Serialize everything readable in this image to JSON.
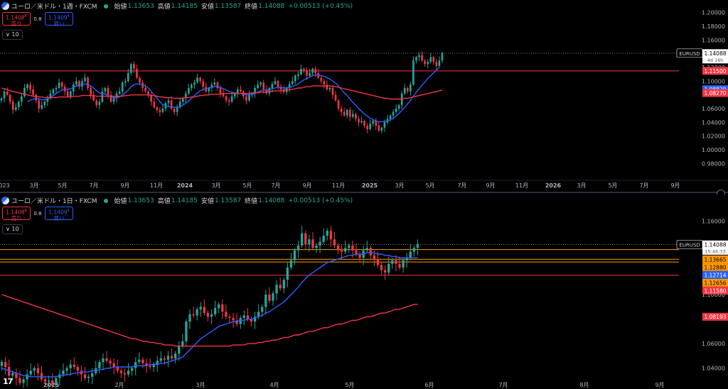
{
  "colors": {
    "up": "#26a69a",
    "down": "#f23645",
    "ma_fast": "#2962ff",
    "ma_slow": "#f23645",
    "orange": "#ff9800"
  },
  "panes": [
    {
      "symbol_title": "ユーロ／米ドル・1週・FXCM",
      "ohlc": [
        {
          "label": "始値",
          "value": "1.13653"
        },
        {
          "label": "高値",
          "value": "1.14185"
        },
        {
          "label": "安値",
          "value": "1.13587"
        },
        {
          "label": "終値",
          "value": "1.14088"
        },
        {
          "label": "",
          "value": "+0.00513 (+0.45%)"
        }
      ],
      "sell": {
        "price": "1.1408",
        "sup": "8",
        "label": "売り"
      },
      "buy": {
        "price": "1.1409",
        "sup": "4",
        "label": "買い"
      },
      "spread": "0.8",
      "collapse": "10",
      "ticker_tag": "EURUSD",
      "countdown": "4d 16h",
      "price_labels": [
        {
          "value": "1.14088",
          "kind": "last"
        },
        {
          "value": "1.11500",
          "kind": "red"
        },
        {
          "value": "1.08820",
          "kind": "blue"
        },
        {
          "value": "1.08270",
          "kind": "red"
        }
      ],
      "y_ticks": [
        "1.20000",
        "1.18000",
        "1.16000",
        "1.14000",
        "1.12000",
        "1.10000",
        "1.08000",
        "1.06000",
        "1.04000",
        "1.02000",
        "1.00000",
        "0.98000"
      ],
      "x_labels": [
        "023",
        "3月",
        "5月",
        "7月",
        "9月",
        "11月",
        "2024",
        "3月",
        "5月",
        "7月",
        "9月",
        "11月",
        "2025",
        "3月",
        "5月",
        "7月",
        "9月",
        "11月",
        "2026",
        "3月",
        "5月",
        "7月",
        "9月"
      ]
    },
    {
      "symbol_title": "ユーロ／米ドル・1日・FXCM",
      "ohlc": [
        {
          "label": "始値",
          "value": "1.13653"
        },
        {
          "label": "高値",
          "value": "1.14185"
        },
        {
          "label": "安値",
          "value": "1.13587"
        },
        {
          "label": "終値",
          "value": "1.14088"
        },
        {
          "label": "",
          "value": "+0.00513 (+0.45%)"
        }
      ],
      "sell": {
        "price": "1.1408",
        "sup": "8",
        "label": "売り"
      },
      "buy": {
        "price": "1.1409",
        "sup": "4",
        "label": "買い"
      },
      "spread": "0.8",
      "collapse": "10",
      "ticker_tag": "EURUSD",
      "countdown": "15:46:33",
      "price_labels": [
        {
          "value": "1.14088",
          "kind": "last"
        },
        {
          "value": "1.13665",
          "kind": "orange"
        },
        {
          "value": "1.12880",
          "kind": "orange"
        },
        {
          "value": "1.12714",
          "kind": "blue"
        },
        {
          "value": "1.12656",
          "kind": "orange"
        },
        {
          "value": "1.11580",
          "kind": "red"
        },
        {
          "value": "1.08193",
          "kind": "red"
        }
      ],
      "y_ticks": [
        "1.16000",
        "1.10000",
        "1.06000",
        "1.04000"
      ],
      "x_labels": [
        "2025",
        "2月",
        "3月",
        "4月",
        "5月",
        "6月",
        "7月",
        "8月",
        "9月"
      ],
      "logo": "17"
    }
  ],
  "chart_data": [
    {
      "type": "candlestick",
      "title": "ユーロ／米ドル・1週・FXCM",
      "ylim": [
        0.97,
        1.21
      ],
      "y_axis_ticks": [
        1.2,
        1.18,
        1.16,
        1.14,
        1.12,
        1.1,
        1.08,
        1.06,
        1.04,
        1.02,
        1.0,
        0.98
      ],
      "x_axis_labels": [
        "023",
        "3月",
        "5月",
        "7月",
        "9月",
        "11月",
        "2024",
        "3月",
        "5月",
        "7月",
        "9月",
        "11月",
        "2025",
        "3月",
        "5月",
        "7月",
        "9月",
        "11月",
        "2026",
        "3月",
        "5月",
        "7月",
        "9月"
      ],
      "horizontal_levels": [
        {
          "value": 1.115,
          "color": "red"
        },
        {
          "value": 1.14088,
          "color": "dotted"
        }
      ],
      "close_series": [
        1.075,
        1.085,
        1.08,
        1.07,
        1.058,
        1.062,
        1.07,
        1.078,
        1.09,
        1.095,
        1.088,
        1.08,
        1.072,
        1.06,
        1.065,
        1.07,
        1.075,
        1.082,
        1.088,
        1.09,
        1.098,
        1.092,
        1.085,
        1.078,
        1.085,
        1.095,
        1.1,
        1.092,
        1.1,
        1.105,
        1.09,
        1.08,
        1.072,
        1.065,
        1.07,
        1.085,
        1.09,
        1.08,
        1.07,
        1.075,
        1.082,
        1.085,
        1.098,
        1.1,
        1.112,
        1.125,
        1.118,
        1.105,
        1.098,
        1.09,
        1.085,
        1.08,
        1.07,
        1.062,
        1.058,
        1.055,
        1.06,
        1.068,
        1.072,
        1.06,
        1.055,
        1.062,
        1.07,
        1.075,
        1.082,
        1.09,
        1.095,
        1.098,
        1.105,
        1.1,
        1.092,
        1.085,
        1.09,
        1.095,
        1.098,
        1.09,
        1.082,
        1.078,
        1.072,
        1.07,
        1.078,
        1.082,
        1.088,
        1.085,
        1.078,
        1.072,
        1.08,
        1.082,
        1.09,
        1.095,
        1.098,
        1.088,
        1.082,
        1.09,
        1.096,
        1.1,
        1.092,
        1.088,
        1.084,
        1.09,
        1.096,
        1.1,
        1.108,
        1.11,
        1.118,
        1.116,
        1.108,
        1.112,
        1.118,
        1.112,
        1.105,
        1.1,
        1.095,
        1.088,
        1.09,
        1.08,
        1.072,
        1.06,
        1.055,
        1.05,
        1.058,
        1.048,
        1.052,
        1.045,
        1.04,
        1.042,
        1.035,
        1.03,
        1.038,
        1.042,
        1.035,
        1.028,
        1.032,
        1.04,
        1.045,
        1.05,
        1.055,
        1.06,
        1.065,
        1.082,
        1.09,
        1.085,
        1.095,
        1.13,
        1.135,
        1.138,
        1.13,
        1.125,
        1.128,
        1.135,
        1.128,
        1.122,
        1.13,
        1.141
      ],
      "series": [
        {
          "name": "MA (fast)",
          "color": "#2962ff",
          "values": [
            null,
            null,
            null,
            null,
            null,
            null,
            null,
            null,
            null,
            1.07,
            1.072,
            1.074,
            1.075,
            1.074,
            1.073,
            1.073,
            1.074,
            1.076,
            1.079,
            1.082,
            1.085,
            1.087,
            1.088,
            1.088,
            1.089,
            1.091,
            1.093,
            1.094,
            1.095,
            1.096,
            1.095,
            1.093,
            1.09,
            1.086,
            1.083,
            1.082,
            1.081,
            1.079,
            1.077,
            1.076,
            1.076,
            1.077,
            1.08,
            1.083,
            1.087,
            1.092,
            1.095,
            1.096,
            1.096,
            1.095,
            1.093,
            1.09,
            1.085,
            1.08,
            1.075,
            1.07,
            1.066,
            1.064,
            1.063,
            1.062,
            1.062,
            1.062,
            1.063,
            1.065,
            1.068,
            1.071,
            1.075,
            1.079,
            1.083,
            1.086,
            1.088,
            1.089,
            1.09,
            1.091,
            1.092,
            1.092,
            1.091,
            1.089,
            1.087,
            1.085,
            1.084,
            1.083,
            1.082,
            1.082,
            1.081,
            1.08,
            1.08,
            1.081,
            1.082,
            1.084,
            1.086,
            1.087,
            1.087,
            1.088,
            1.089,
            1.09,
            1.091,
            1.091,
            1.09,
            1.09,
            1.091,
            1.092,
            1.094,
            1.096,
            1.099,
            1.102,
            1.104,
            1.106,
            1.108,
            1.109,
            1.109,
            1.108,
            1.107,
            1.105,
            1.103,
            1.1,
            1.097,
            1.093,
            1.088,
            1.083,
            1.079,
            1.074,
            1.069,
            1.065,
            1.06,
            1.056,
            1.052,
            1.049,
            1.046,
            1.044,
            1.042,
            1.041,
            1.041,
            1.041,
            1.042,
            1.044,
            1.046,
            1.049,
            1.053,
            1.057,
            1.062,
            1.067,
            1.072,
            1.078,
            1.084,
            1.089,
            1.094,
            1.099,
            1.104,
            1.108,
            1.112,
            1.116,
            1.12
          ]
        },
        {
          "name": "MA (slow)",
          "color": "#f23645",
          "values": [
            1.09,
            1.089,
            1.088,
            1.086,
            1.085,
            1.084,
            1.083,
            1.082,
            1.081,
            1.08,
            1.079,
            1.078,
            1.078,
            1.077,
            1.077,
            1.076,
            1.076,
            1.076,
            1.076,
            1.076,
            1.077,
            1.077,
            1.077,
            1.077,
            1.077,
            1.078,
            1.078,
            1.078,
            1.079,
            1.079,
            1.079,
            1.079,
            1.079,
            1.078,
            1.078,
            1.078,
            1.078,
            1.078,
            1.078,
            1.078,
            1.078,
            1.078,
            1.078,
            1.079,
            1.079,
            1.08,
            1.08,
            1.08,
            1.08,
            1.08,
            1.08,
            1.08,
            1.079,
            1.079,
            1.078,
            1.077,
            1.077,
            1.076,
            1.076,
            1.076,
            1.075,
            1.075,
            1.075,
            1.075,
            1.076,
            1.076,
            1.077,
            1.077,
            1.078,
            1.079,
            1.079,
            1.08,
            1.08,
            1.081,
            1.081,
            1.081,
            1.081,
            1.082,
            1.082,
            1.082,
            1.082,
            1.082,
            1.082,
            1.082,
            1.082,
            1.082,
            1.082,
            1.083,
            1.083,
            1.083,
            1.084,
            1.084,
            1.084,
            1.085,
            1.085,
            1.086,
            1.086,
            1.086,
            1.087,
            1.087,
            1.088,
            1.088,
            1.089,
            1.09,
            1.09,
            1.091,
            1.092,
            1.092,
            1.093,
            1.093,
            1.093,
            1.093,
            1.093,
            1.093,
            1.093,
            1.092,
            1.092,
            1.091,
            1.09,
            1.089,
            1.088,
            1.087,
            1.086,
            1.085,
            1.084,
            1.083,
            1.082,
            1.081,
            1.08,
            1.079,
            1.078,
            1.077,
            1.076,
            1.075,
            1.075,
            1.074,
            1.074,
            1.074,
            1.074,
            1.074,
            1.075,
            1.075,
            1.076,
            1.077,
            1.078,
            1.079,
            1.08,
            1.081,
            1.082,
            1.083,
            1.084,
            1.085,
            1.086,
            1.087
          ]
        }
      ]
    },
    {
      "type": "candlestick",
      "title": "ユーロ／米ドル・1日・FXCM",
      "ylim": [
        1.03,
        1.17
      ],
      "y_axis_ticks": [
        1.16,
        1.1,
        1.06,
        1.04
      ],
      "x_axis_labels": [
        "2025",
        "2月",
        "3月",
        "4月",
        "5月",
        "6月",
        "7月",
        "8月",
        "9月"
      ],
      "horizontal_levels": [
        {
          "value": 1.14088,
          "color": "dotted"
        },
        {
          "value": 1.13665,
          "color": "orange"
        },
        {
          "value": 1.1288,
          "color": "orange"
        },
        {
          "value": 1.12656,
          "color": "orange"
        },
        {
          "value": 1.1158,
          "color": "red"
        }
      ],
      "close_series": [
        1.045,
        1.041,
        1.034,
        1.036,
        1.032,
        1.028,
        1.031,
        1.035,
        1.038,
        1.04,
        1.036,
        1.031,
        1.029,
        1.03,
        1.026,
        1.032,
        1.035,
        1.038,
        1.04,
        1.043,
        1.041,
        1.038,
        1.035,
        1.032,
        1.033,
        1.036,
        1.04,
        1.045,
        1.048,
        1.046,
        1.044,
        1.041,
        1.038,
        1.036,
        1.035,
        1.038,
        1.04,
        1.045,
        1.047,
        1.044,
        1.042,
        1.041,
        1.043,
        1.046,
        1.048,
        1.047,
        1.05,
        1.048,
        1.052,
        1.058,
        1.062,
        1.078,
        1.084,
        1.083,
        1.088,
        1.09,
        1.085,
        1.082,
        1.084,
        1.089,
        1.092,
        1.086,
        1.082,
        1.081,
        1.079,
        1.076,
        1.081,
        1.083,
        1.08,
        1.078,
        1.082,
        1.086,
        1.09,
        1.1,
        1.095,
        1.101,
        1.108,
        1.105,
        1.112,
        1.122,
        1.128,
        1.136,
        1.14,
        1.15,
        1.141,
        1.145,
        1.138,
        1.14,
        1.143,
        1.148,
        1.152,
        1.145,
        1.14,
        1.137,
        1.135,
        1.138,
        1.14,
        1.136,
        1.133,
        1.13,
        1.136,
        1.138,
        1.132,
        1.129,
        1.124,
        1.12,
        1.118,
        1.125,
        1.128,
        1.125,
        1.122,
        1.128,
        1.13,
        1.135,
        1.138,
        1.141
      ],
      "series": [
        {
          "name": "MA (fast)",
          "color": "#2962ff",
          "values": [
            1.04,
            1.039,
            1.038,
            1.037,
            1.036,
            1.035,
            1.034,
            1.034,
            1.033,
            1.033,
            1.033,
            1.033,
            1.033,
            1.033,
            1.033,
            1.033,
            1.034,
            1.034,
            1.035,
            1.035,
            1.036,
            1.036,
            1.037,
            1.037,
            1.037,
            1.038,
            1.038,
            1.039,
            1.039,
            1.04,
            1.04,
            1.041,
            1.041,
            1.041,
            1.041,
            1.041,
            1.041,
            1.042,
            1.042,
            1.042,
            1.042,
            1.043,
            1.043,
            1.043,
            1.044,
            1.044,
            1.045,
            1.046,
            1.047,
            1.048,
            1.049,
            1.052,
            1.055,
            1.058,
            1.061,
            1.064,
            1.066,
            1.068,
            1.07,
            1.072,
            1.074,
            1.075,
            1.076,
            1.077,
            1.078,
            1.078,
            1.079,
            1.079,
            1.08,
            1.08,
            1.081,
            1.082,
            1.083,
            1.085,
            1.086,
            1.088,
            1.09,
            1.092,
            1.094,
            1.097,
            1.1,
            1.103,
            1.106,
            1.11,
            1.113,
            1.116,
            1.118,
            1.12,
            1.122,
            1.124,
            1.126,
            1.127,
            1.128,
            1.129,
            1.13,
            1.131,
            1.132,
            1.132,
            1.133,
            1.133,
            1.133,
            1.134,
            1.134,
            1.134,
            1.133,
            1.133,
            1.132,
            1.132,
            1.131,
            1.131,
            1.13,
            1.13,
            1.13,
            1.13,
            1.13,
            1.13
          ]
        },
        {
          "name": "MA (slow)",
          "color": "#f23645",
          "values": [
            1.1,
            1.099,
            1.098,
            1.097,
            1.096,
            1.095,
            1.094,
            1.093,
            1.092,
            1.091,
            1.09,
            1.089,
            1.088,
            1.087,
            1.086,
            1.085,
            1.084,
            1.083,
            1.082,
            1.081,
            1.08,
            1.079,
            1.078,
            1.077,
            1.076,
            1.075,
            1.074,
            1.073,
            1.072,
            1.071,
            1.07,
            1.069,
            1.068,
            1.067,
            1.066,
            1.065,
            1.064,
            1.064,
            1.063,
            1.062,
            1.062,
            1.061,
            1.061,
            1.06,
            1.06,
            1.059,
            1.059,
            1.059,
            1.058,
            1.058,
            1.058,
            1.058,
            1.058,
            1.058,
            1.058,
            1.058,
            1.058,
            1.058,
            1.058,
            1.058,
            1.058,
            1.058,
            1.058,
            1.058,
            1.059,
            1.059,
            1.059,
            1.059,
            1.06,
            1.06,
            1.06,
            1.061,
            1.061,
            1.062,
            1.062,
            1.063,
            1.063,
            1.064,
            1.065,
            1.065,
            1.066,
            1.067,
            1.067,
            1.068,
            1.069,
            1.07,
            1.07,
            1.071,
            1.072,
            1.073,
            1.073,
            1.074,
            1.075,
            1.076,
            1.076,
            1.077,
            1.078,
            1.079,
            1.079,
            1.08,
            1.081,
            1.082,
            1.082,
            1.083,
            1.084,
            1.085,
            1.085,
            1.086,
            1.087,
            1.088,
            1.088,
            1.089,
            1.09,
            1.091,
            1.092,
            1.092
          ]
        }
      ]
    }
  ]
}
